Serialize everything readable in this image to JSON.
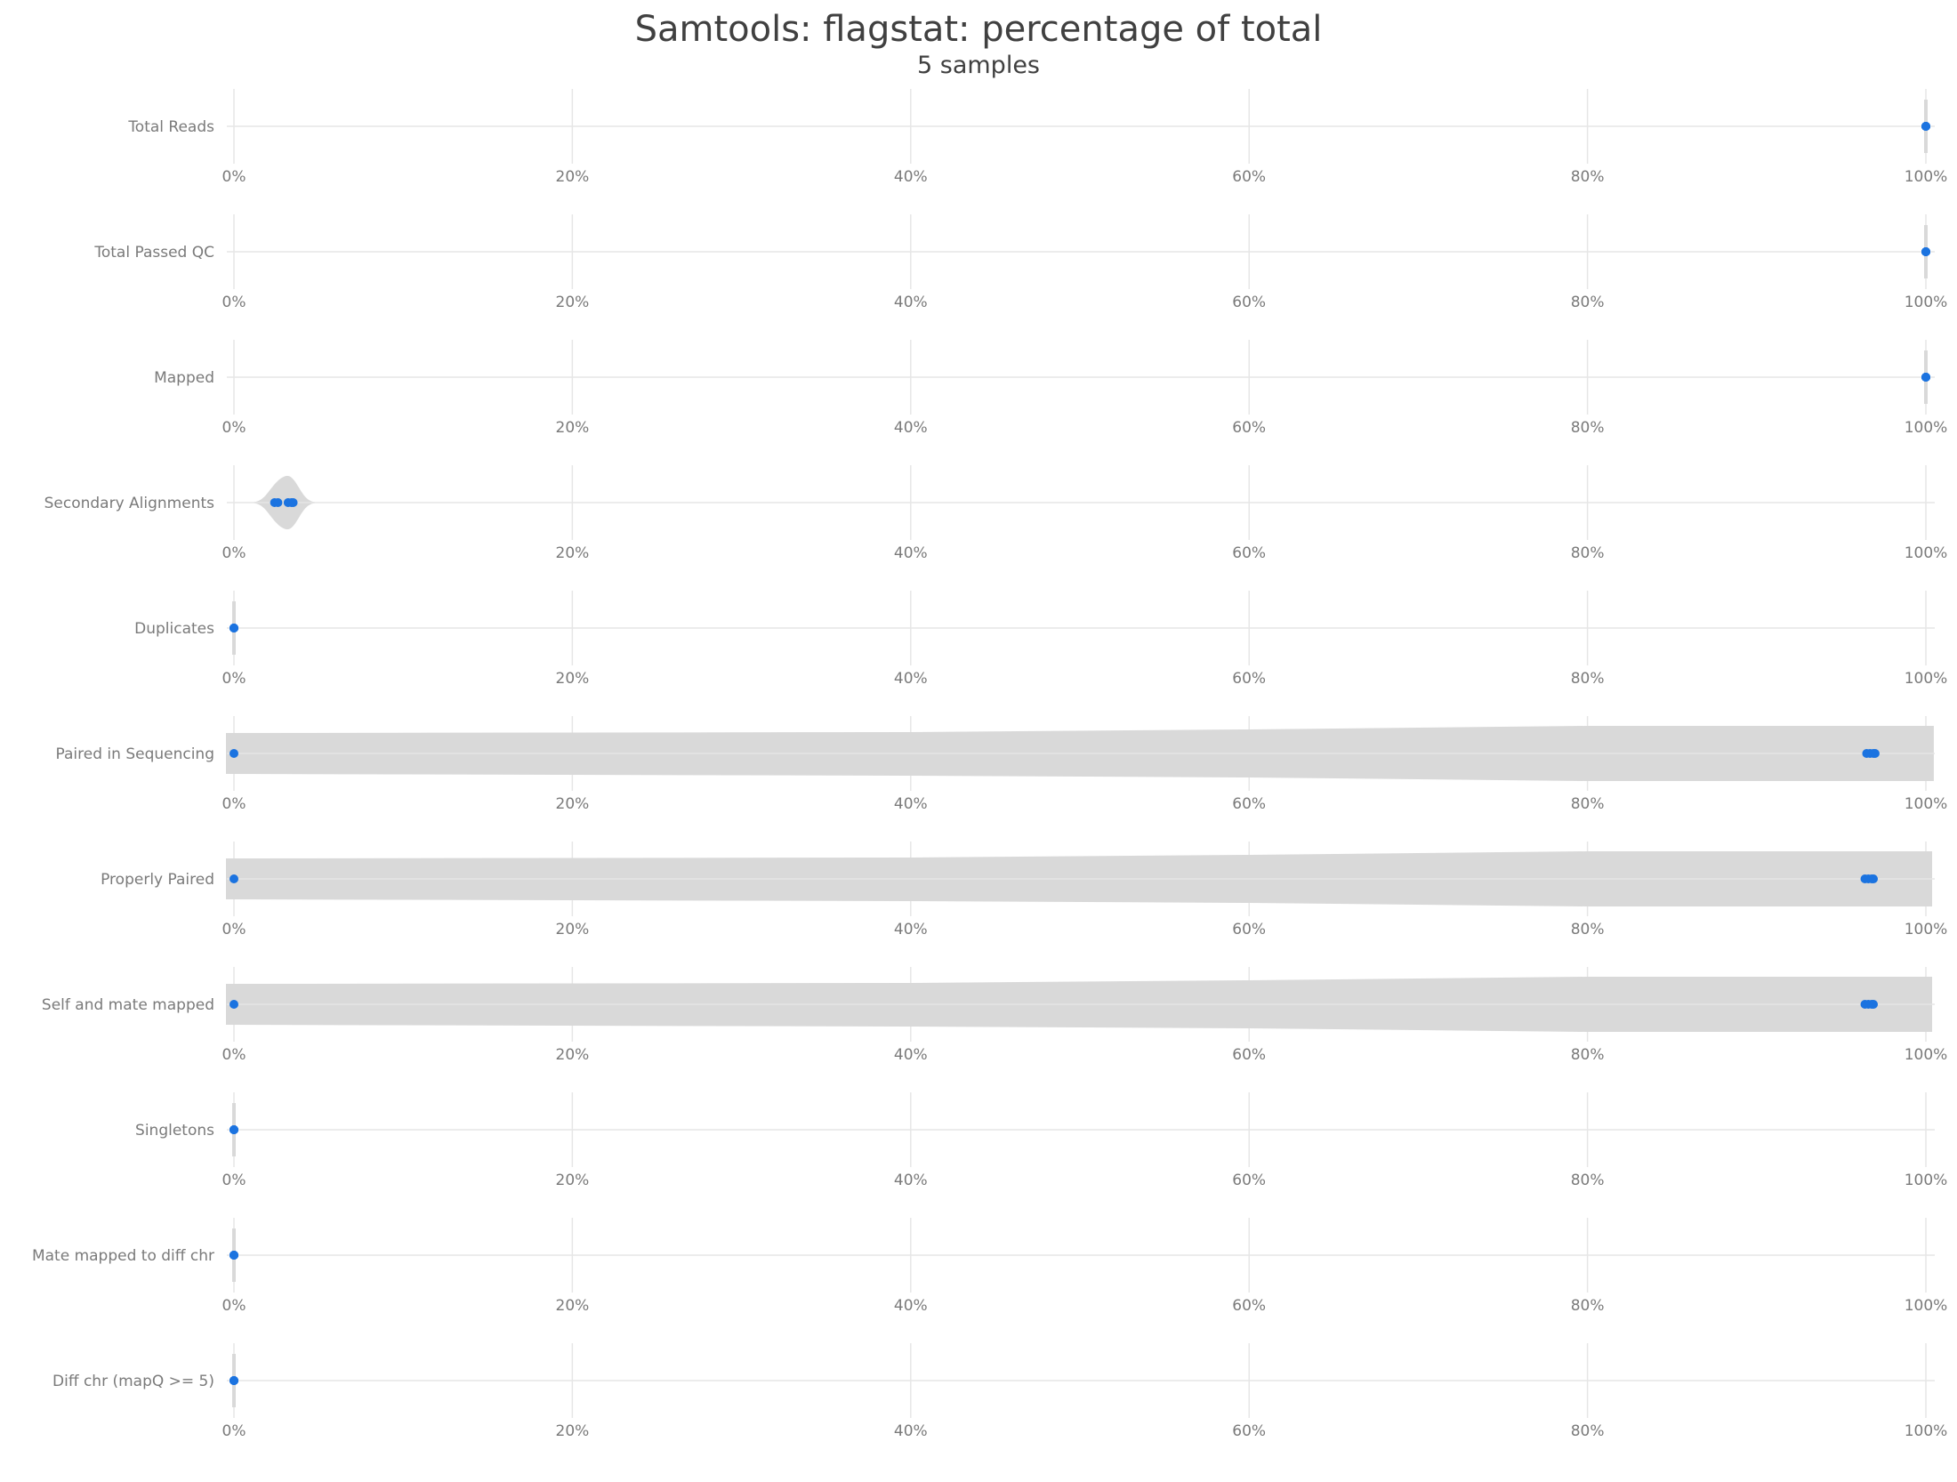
{
  "chart_data": {
    "type": "violin",
    "title": "Samtools: flagstat: percentage of total",
    "subtitle": "5 samples",
    "xlim": [
      0,
      100
    ],
    "tick_labels": [
      "0%",
      "20%",
      "40%",
      "60%",
      "80%",
      "100%"
    ],
    "tick_values": [
      0,
      20,
      40,
      60,
      80,
      100
    ],
    "grid": true,
    "colors": {
      "point": "#1b73e0",
      "violin": "#d9d9d9",
      "grid": "#e6e6e6",
      "label": "#7a7a7a"
    },
    "metrics": [
      {
        "name": "Total Reads",
        "values": [
          100,
          100,
          100,
          100,
          100
        ]
      },
      {
        "name": "Total Passed QC",
        "values": [
          100,
          100,
          100,
          100,
          100
        ]
      },
      {
        "name": "Mapped",
        "values": [
          100,
          100,
          100,
          100,
          100
        ]
      },
      {
        "name": "Secondary Alignments",
        "values": [
          2.4,
          2.6,
          3.2,
          3.5,
          3.4
        ]
      },
      {
        "name": "Duplicates",
        "values": [
          0,
          0,
          0,
          0,
          0
        ]
      },
      {
        "name": "Paired in Sequencing",
        "values": [
          0,
          96.5,
          96.7,
          96.9,
          97.0
        ]
      },
      {
        "name": "Properly Paired",
        "values": [
          0,
          96.4,
          96.6,
          96.8,
          96.9
        ]
      },
      {
        "name": "Self and mate mapped",
        "values": [
          0,
          96.4,
          96.6,
          96.8,
          96.9
        ]
      },
      {
        "name": "Singletons",
        "values": [
          0,
          0,
          0,
          0,
          0
        ]
      },
      {
        "name": "Mate mapped to diff chr",
        "values": [
          0,
          0,
          0,
          0,
          0
        ]
      },
      {
        "name": "Diff chr (mapQ >= 5)",
        "values": [
          0,
          0,
          0,
          0,
          0
        ]
      }
    ]
  }
}
